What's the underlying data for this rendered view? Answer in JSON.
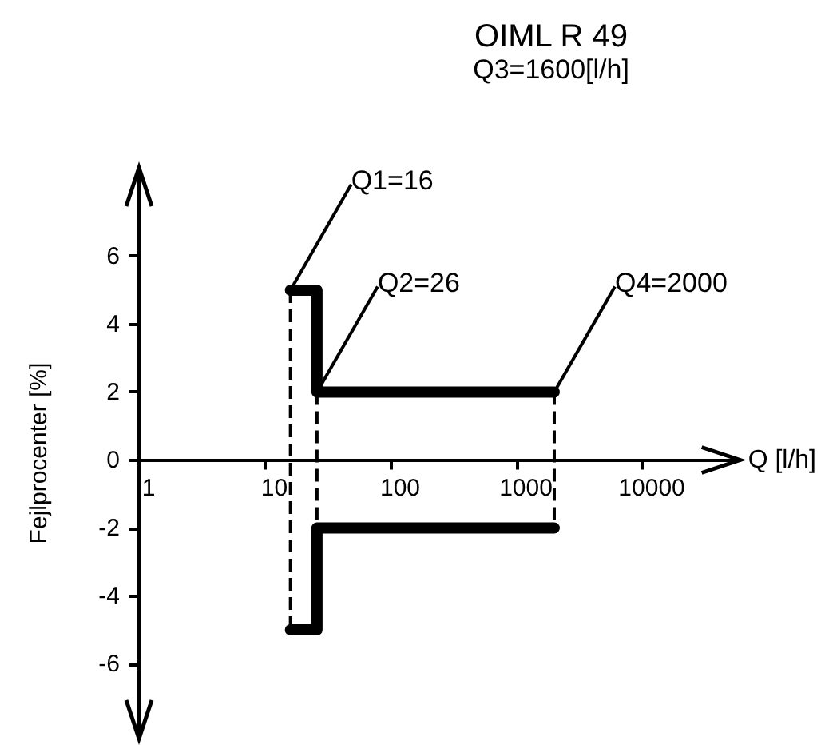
{
  "chart_data": {
    "type": "line",
    "title": "OIML R 49",
    "subtitle": "Q3=1600[l/h]",
    "xlabel": "Q [l/h]",
    "ylabel": "Fejlprocenter [%]",
    "log": "x",
    "xlim": [
      1,
      60000
    ],
    "xticks": [
      1,
      10,
      100,
      1000,
      10000
    ],
    "ylim": [
      -8.2,
      8.6
    ],
    "yticks": [
      -6,
      -4,
      -2,
      0,
      2,
      4,
      6
    ],
    "grid": false,
    "line_style": "solid",
    "series": [
      {
        "color": "#000000",
        "x": [
          16,
          26,
          26,
          2000
        ],
        "values": [
          5,
          5,
          2,
          2
        ]
      },
      {
        "color": "#000000",
        "x": [
          16,
          26,
          26,
          2000
        ],
        "values": [
          -5,
          -5,
          -2,
          -2
        ]
      },
      {
        "color": "#000000",
        "x": [
          16,
          16
        ],
        "values": [
          5,
          -5
        ],
        "line_style": "dashed"
      },
      {
        "color": "#000000",
        "x": [
          26,
          26
        ],
        "values": [
          2,
          -2
        ],
        "line_style": "dashed"
      },
      {
        "color": "#000000",
        "x": [
          2000,
          2000
        ],
        "values": [
          2,
          -2
        ],
        "line_style": "dashed"
      }
    ],
    "annotations": [
      {
        "text": "Q1=16",
        "x": 16,
        "y": 5
      },
      {
        "text": "Q2=26",
        "x": 26,
        "y": 2
      },
      {
        "text": "Q4=2000",
        "x": 2000,
        "y": 2
      }
    ]
  }
}
